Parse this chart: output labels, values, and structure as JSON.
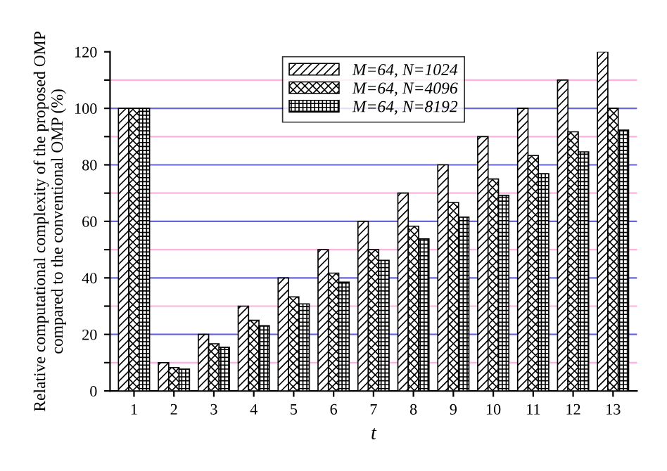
{
  "chart_data": {
    "type": "bar",
    "xlabel": "t",
    "ylabel": "Relative computational complexity of the proposed OMP\ncompared to the conventional OMP (%)",
    "categories": [
      "1",
      "2",
      "3",
      "4",
      "5",
      "6",
      "7",
      "8",
      "9",
      "10",
      "11",
      "12",
      "13"
    ],
    "series": [
      {
        "name": "M=64, N=1024",
        "color": "#000000",
        "values": [
          100,
          10,
          20,
          30,
          40,
          50,
          60,
          70,
          80,
          90,
          100,
          110,
          120
        ]
      },
      {
        "name": "M=64, N=4096",
        "color": "#000000",
        "values": [
          100,
          8.3,
          16.7,
          25,
          33.3,
          41.7,
          50,
          58.3,
          66.7,
          75,
          83.3,
          91.7,
          100
        ]
      },
      {
        "name": "M=64, N=8192",
        "color": "#000000",
        "values": [
          100,
          7.7,
          15.4,
          23.1,
          30.8,
          38.5,
          46.2,
          53.8,
          61.5,
          69.2,
          76.9,
          84.6,
          92.3
        ]
      }
    ],
    "ylim": [
      0,
      120
    ],
    "yticks": [
      0,
      {
        "value": 10,
        "label": null
      },
      20,
      {
        "value": 30,
        "label": null
      },
      40,
      {
        "value": 50,
        "label": null
      },
      60,
      {
        "value": 70,
        "label": null
      },
      80,
      {
        "value": 90,
        "label": null
      },
      100,
      {
        "value": 110,
        "label": null
      },
      120
    ],
    "grid": "y",
    "legend": "top"
  }
}
